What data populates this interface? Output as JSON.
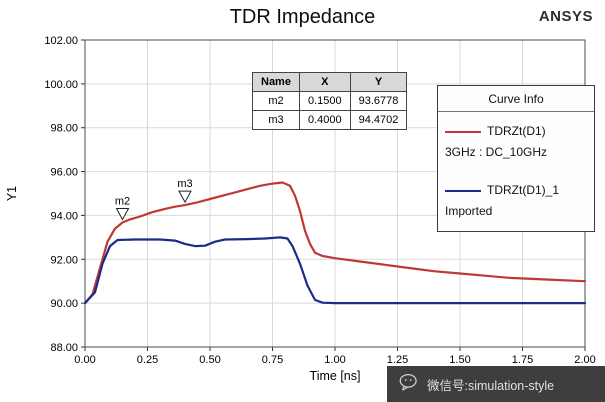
{
  "header": {
    "title": "TDR Impedance",
    "brand": "ANSYS"
  },
  "marker_table": {
    "headers": [
      "Name",
      "X",
      "Y"
    ],
    "rows": [
      [
        "m2",
        "0.1500",
        "93.6778"
      ],
      [
        "m3",
        "0.4000",
        "94.4702"
      ]
    ]
  },
  "legend": {
    "title": "Curve Info",
    "entries": [
      {
        "name": "TDRZt(D1)",
        "subtitle": "3GHz : DC_10GHz"
      },
      {
        "name": "TDRZt(D1)_1",
        "subtitle": "Imported"
      }
    ]
  },
  "watermark": {
    "text": "微信号:simulation-style",
    "icon": "wechat-icon",
    "bg": "#3e3e3e"
  },
  "chart_data": {
    "type": "line",
    "title": "TDR Impedance",
    "xlabel": "Time [ns]",
    "ylabel": "Y1",
    "xlim": [
      0,
      2
    ],
    "ylim": [
      88,
      102
    ],
    "grid": true,
    "grid_color": "#d9d9d9",
    "axis_color": "#4d4d4d",
    "tick_color": "#333333",
    "xticks": [
      0,
      0.25,
      0.5,
      0.75,
      1,
      1.25,
      1.5,
      1.75,
      2
    ],
    "xtick_labels": [
      "0.00",
      "0.25",
      "0.50",
      "0.75",
      "1.00",
      "1.25",
      "1.50",
      "1.75",
      "2.00"
    ],
    "yticks": [
      88,
      90,
      92,
      94,
      96,
      98,
      100,
      102
    ],
    "ytick_labels": [
      "88.00",
      "90.00",
      "92.00",
      "94.00",
      "96.00",
      "98.00",
      "100.00",
      "102.00"
    ],
    "series": [
      {
        "name": "TDRZt(D1)",
        "subtitle": "3GHz : DC_10GHz",
        "color": "#c23736",
        "points": [
          [
            0,
            90.0
          ],
          [
            0.03,
            90.4
          ],
          [
            0.06,
            91.6
          ],
          [
            0.09,
            92.8
          ],
          [
            0.12,
            93.4
          ],
          [
            0.15,
            93.6778
          ],
          [
            0.18,
            93.82
          ],
          [
            0.22,
            93.95
          ],
          [
            0.27,
            94.15
          ],
          [
            0.32,
            94.3
          ],
          [
            0.36,
            94.4
          ],
          [
            0.4,
            94.4702
          ],
          [
            0.45,
            94.6
          ],
          [
            0.5,
            94.75
          ],
          [
            0.55,
            94.9
          ],
          [
            0.6,
            95.05
          ],
          [
            0.65,
            95.2
          ],
          [
            0.7,
            95.35
          ],
          [
            0.75,
            95.45
          ],
          [
            0.79,
            95.5
          ],
          [
            0.82,
            95.35
          ],
          [
            0.84,
            94.9
          ],
          [
            0.86,
            94.2
          ],
          [
            0.88,
            93.3
          ],
          [
            0.9,
            92.7
          ],
          [
            0.92,
            92.3
          ],
          [
            0.95,
            92.15
          ],
          [
            1.0,
            92.05
          ],
          [
            1.1,
            91.9
          ],
          [
            1.2,
            91.75
          ],
          [
            1.3,
            91.6
          ],
          [
            1.4,
            91.45
          ],
          [
            1.5,
            91.35
          ],
          [
            1.6,
            91.25
          ],
          [
            1.7,
            91.15
          ],
          [
            1.8,
            91.1
          ],
          [
            1.9,
            91.05
          ],
          [
            2.0,
            91.0
          ]
        ]
      },
      {
        "name": "TDRZt(D1)_1",
        "subtitle": "Imported",
        "color": "#1c2b8a",
        "points": [
          [
            0,
            90.0
          ],
          [
            0.04,
            90.5
          ],
          [
            0.07,
            91.8
          ],
          [
            0.1,
            92.6
          ],
          [
            0.13,
            92.88
          ],
          [
            0.2,
            92.9
          ],
          [
            0.3,
            92.9
          ],
          [
            0.36,
            92.85
          ],
          [
            0.4,
            92.7
          ],
          [
            0.44,
            92.6
          ],
          [
            0.48,
            92.62
          ],
          [
            0.52,
            92.8
          ],
          [
            0.56,
            92.9
          ],
          [
            0.65,
            92.92
          ],
          [
            0.72,
            92.95
          ],
          [
            0.78,
            93.0
          ],
          [
            0.81,
            92.95
          ],
          [
            0.83,
            92.6
          ],
          [
            0.86,
            91.8
          ],
          [
            0.89,
            90.8
          ],
          [
            0.92,
            90.15
          ],
          [
            0.95,
            90.02
          ],
          [
            1.0,
            90.0
          ],
          [
            1.25,
            90.0
          ],
          [
            1.5,
            90.0
          ],
          [
            1.75,
            90.0
          ],
          [
            2.0,
            90.0
          ]
        ]
      }
    ],
    "markers": [
      {
        "name": "m2",
        "x": 0.15,
        "y": 93.6778
      },
      {
        "name": "m3",
        "x": 0.4,
        "y": 94.4702
      }
    ]
  }
}
